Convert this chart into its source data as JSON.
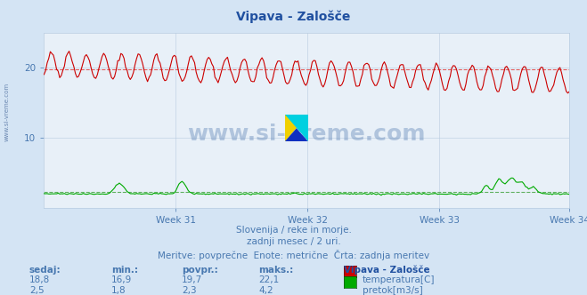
{
  "title": "Vipava - Zalošče",
  "bg_color": "#d4e4f4",
  "plot_bg_color": "#e8f0f8",
  "grid_color": "#b8cce0",
  "text_color": "#4878b0",
  "title_color": "#2050a0",
  "n_points": 336,
  "weeks": [
    "Week 31",
    "Week 32",
    "Week 33",
    "Week 34"
  ],
  "temp_avg": 19.7,
  "flow_avg": 2.3,
  "temp_color": "#cc0000",
  "flow_color": "#00aa00",
  "avg_line_color_temp": "#e06060",
  "avg_line_color_flow": "#60b060",
  "subtitle1": "Slovenija / reke in morje.",
  "subtitle2": "zadnji mesec / 2 uri.",
  "subtitle3": "Meritve: povprečne  Enote: metrične  Črta: zadnja meritev",
  "ylim": [
    0,
    25
  ],
  "yticks": [
    10,
    20
  ],
  "watermark": "www.si-vreme.com"
}
